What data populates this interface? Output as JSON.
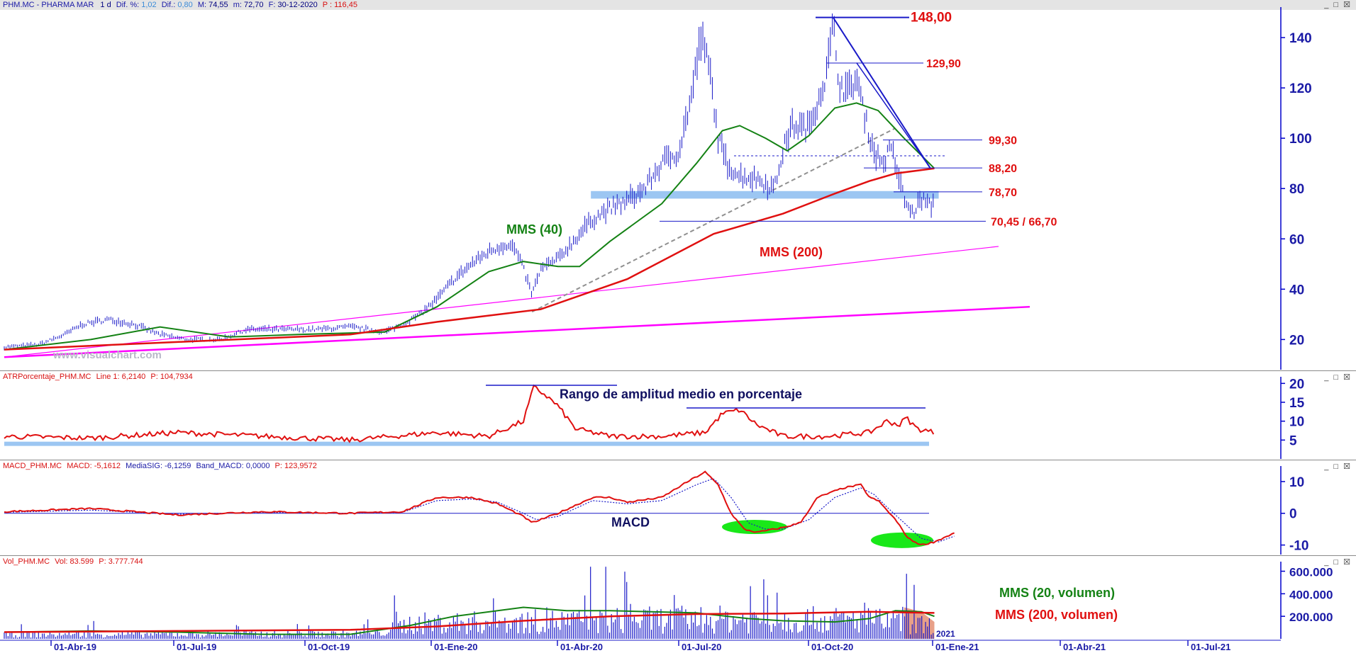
{
  "main_panel": {
    "header": {
      "symbol": "PHM.MC - PHARMA MAR",
      "period": "1 d",
      "dif_pct_label": "Dif. %:",
      "dif_pct": "1,02",
      "dif_label": "Dif.:",
      "dif": "0,80",
      "max_label": "M:",
      "max": "74,55",
      "min_label": "m:",
      "min": "72,70",
      "date_label": "F:",
      "date": "30-12-2020",
      "close_label": "P :",
      "close": "116,45"
    },
    "watermark": "www.visualchart.com"
  },
  "window_buttons": "_ □ ☒",
  "chart_data": [
    {
      "type": "line",
      "name": "PHM.MC daily price (OHLC bars)",
      "x_ticks": [
        "01-Abr-19",
        "01-Jul-19",
        "01-Oct-19",
        "01-Ene-20",
        "01-Abr-20",
        "01-Jul-20",
        "01-Oct-20",
        "01-Ene-21",
        "01-Abr-21",
        "01-Jul-21"
      ],
      "y_ticks": [
        20,
        40,
        60,
        80,
        100,
        120,
        140
      ],
      "ylim": [
        8,
        151
      ],
      "price_path": [
        [
          0,
          17
        ],
        [
          40,
          18
        ],
        [
          70,
          22
        ],
        [
          90,
          26
        ],
        [
          120,
          28
        ],
        [
          150,
          26
        ],
        [
          180,
          22
        ],
        [
          210,
          20
        ],
        [
          250,
          20
        ],
        [
          280,
          24
        ],
        [
          320,
          24
        ],
        [
          360,
          24
        ],
        [
          400,
          25
        ],
        [
          440,
          23
        ],
        [
          460,
          26
        ],
        [
          480,
          30
        ],
        [
          500,
          36
        ],
        [
          520,
          44
        ],
        [
          540,
          50
        ],
        [
          560,
          55
        ],
        [
          580,
          58
        ],
        [
          590,
          56
        ],
        [
          600,
          48
        ],
        [
          610,
          38
        ],
        [
          620,
          48
        ],
        [
          640,
          52
        ],
        [
          660,
          60
        ],
        [
          680,
          68
        ],
        [
          700,
          72
        ],
        [
          720,
          75
        ],
        [
          740,
          80
        ],
        [
          760,
          90
        ],
        [
          780,
          95
        ],
        [
          795,
          118
        ],
        [
          805,
          140
        ],
        [
          815,
          128
        ],
        [
          825,
          100
        ],
        [
          835,
          90
        ],
        [
          850,
          85
        ],
        [
          870,
          84
        ],
        [
          890,
          80
        ],
        [
          900,
          95
        ],
        [
          910,
          105
        ],
        [
          930,
          104
        ],
        [
          940,
          115
        ],
        [
          950,
          125
        ],
        [
          958,
          145
        ],
        [
          965,
          122
        ],
        [
          975,
          118
        ],
        [
          985,
          124
        ],
        [
          995,
          108
        ],
        [
          1005,
          95
        ],
        [
          1015,
          90
        ],
        [
          1025,
          96
        ],
        [
          1030,
          90
        ],
        [
          1037,
          80
        ],
        [
          1042,
          74
        ],
        [
          1050,
          70
        ],
        [
          1060,
          76
        ],
        [
          1070,
          73
        ],
        [
          1075,
          74
        ]
      ],
      "ma40": [
        [
          0,
          16
        ],
        [
          100,
          20
        ],
        [
          180,
          25
        ],
        [
          260,
          21
        ],
        [
          340,
          22
        ],
        [
          440,
          23
        ],
        [
          500,
          33
        ],
        [
          560,
          47
        ],
        [
          600,
          51
        ],
        [
          640,
          49
        ],
        [
          665,
          49
        ],
        [
          700,
          59
        ],
        [
          760,
          74
        ],
        [
          800,
          90
        ],
        [
          830,
          103
        ],
        [
          850,
          105
        ],
        [
          880,
          100
        ],
        [
          905,
          95
        ],
        [
          930,
          101
        ],
        [
          960,
          112
        ],
        [
          985,
          114
        ],
        [
          1010,
          111
        ],
        [
          1040,
          100
        ],
        [
          1075,
          88
        ]
      ],
      "ma200": [
        [
          0,
          16
        ],
        [
          200,
          19
        ],
        [
          400,
          22
        ],
        [
          500,
          27
        ],
        [
          620,
          32
        ],
        [
          720,
          44
        ],
        [
          820,
          62
        ],
        [
          900,
          70
        ],
        [
          960,
          78
        ],
        [
          1000,
          83
        ],
        [
          1030,
          86
        ],
        [
          1075,
          88
        ]
      ],
      "levels": [
        {
          "label": "148,00",
          "value": 148
        },
        {
          "label": "129,90",
          "value": 129.9
        },
        {
          "label": "99,30",
          "value": 99.3
        },
        {
          "label": "88,20",
          "value": 88.2
        },
        {
          "label": "78,70",
          "value": 78.7
        },
        {
          "label": "70,45 / 66,70",
          "value": 67
        }
      ],
      "annotations": [
        "MMS (40)",
        "MMS (200)"
      ]
    },
    {
      "type": "line",
      "header": {
        "name": "ATRPorcentaje_PHM.MC",
        "line_label": "Line 1:",
        "line_value": "6,2140",
        "p_label": "P:",
        "p_value": "104,7934"
      },
      "y_ticks": [
        5,
        10,
        15,
        20
      ],
      "ylim": [
        0,
        21
      ],
      "annotation": "Rango de amplitud medio en porcentaje"
    },
    {
      "type": "line",
      "header": {
        "name": "MACD_PHM.MC",
        "macd_label": "MACD:",
        "macd_value": "-5,1612",
        "sig_label": "MediaSIG:",
        "sig_value": "-6,1259",
        "band_label": "Band_MACD:",
        "band_value": "0,0000",
        "p_label": "P:",
        "p_value": "123,9572"
      },
      "y_ticks": [
        -10,
        0,
        10
      ],
      "ylim": [
        -13,
        14
      ],
      "annotation": "MACD"
    },
    {
      "type": "bar",
      "header": {
        "name": "Vol_PHM.MC",
        "vol_label": "Vol:",
        "vol_value": "83.599",
        "p_label": "P:",
        "p_value": "3.777.744"
      },
      "y_ticks": [
        "200.000",
        "400.000",
        "600.000"
      ],
      "ylim": [
        0,
        660000
      ],
      "annotations": [
        "MMS (20, volumen)",
        "MMS (200, volumen)"
      ],
      "year_label": "2021"
    }
  ]
}
